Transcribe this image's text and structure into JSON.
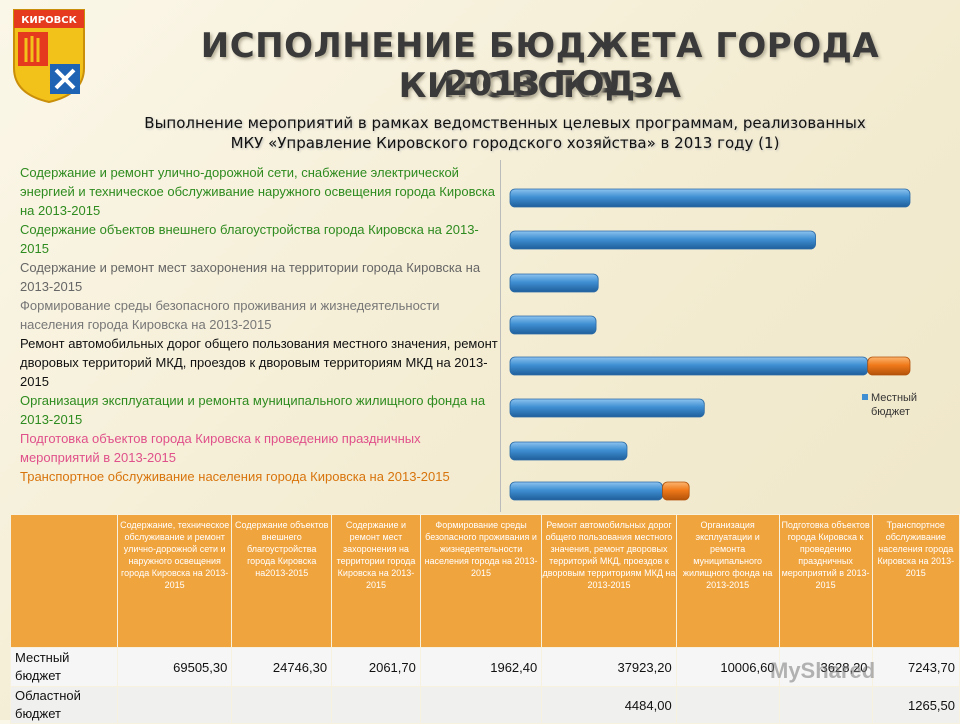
{
  "crest": {
    "text": "КИРОВСК"
  },
  "title_line1": "ИСПОЛНЕНИЕ БЮДЖЕТА  ГОРОДА КИРОВСКА ЗА",
  "title_line2": "2013 ГОД",
  "subtitle_line1": "Выполнение мероприятий в рамках ведомственных целевых программам, реализованных",
  "subtitle_line2": "МКУ «Управление Кировского городского хозяйства» в 2013 году (1)",
  "program_labels": [
    {
      "text": "Содержание и ремонт улично-дорожной сети, снабжение электрической энергией и техническое обслуживание наружного освещения города Кировска на 2013-2015",
      "color": "#2e8b1f"
    },
    {
      "text": "Содержание объектов внешнего благоустройства города Кировска на 2013-2015",
      "color": "#2e8b1f"
    },
    {
      "text": "Содержание и ремонт мест захоронения на территории города Кировска на 2013-2015",
      "color": "#666666"
    },
    {
      "text": "Формирование среды безопасного проживания и жизнедеятельности населения города Кировска на 2013-2015",
      "color": "#777777"
    },
    {
      "text": "Ремонт автомобильных дорог общего пользования местного значения, ремонт дворовых территорий МКД, проездов к дворовым территориям МКД на 2013-2015",
      "color": "#111111"
    },
    {
      "text": "Организация эксплуатации и ремонта муниципального жилищного фонда на 2013-2015",
      "color": "#2e8b1f"
    },
    {
      "text": "Подготовка объектов города Кировска к проведению праздничных мероприятий в 2013-2015",
      "color": "#e0508a"
    },
    {
      "text": "Транспортное обслуживание населения города Кировска на 2013-2015",
      "color": "#d8740c"
    }
  ],
  "table": {
    "headers": [
      "Содержание, техническое обслуживание и ремонт улично-дорожной сети и наружного освещения города Кировска на 2013-2015",
      "Содержание объектов внешнего благоустройства города Кировска на2013-2015",
      "Содержание и ремонт мест захоронения на территории города Кировска на 2013-2015",
      "Формирование среды безопасного проживания и жизнедеятельности населения города на 2013-2015",
      "Ремонт автомобильных дорог общего пользования местного значения, ремонт дворовых территорий МКД, проездов к дворовым территориям МКД на 2013-2015",
      "Организация эксплуатации и ремонта муниципального жилищного фонда на 2013-2015",
      "Подготовка объектов города Кировска к проведению праздничных мероприятий в 2013-2015",
      "Транспортное обслуживание населения города Кировска на 2013-2015"
    ],
    "rows": [
      {
        "label": "Местный бюджет",
        "cells": [
          "69505,30",
          "24746,30",
          "2061,70",
          "1962,40",
          "37923,20",
          "10006,60",
          "3628,20",
          "7243,70"
        ]
      },
      {
        "label": "Областной бюджет",
        "cells": [
          "",
          "",
          "",
          "",
          "4484,00",
          "",
          "",
          "1265,50"
        ]
      }
    ]
  },
  "chart_data": {
    "type": "bar",
    "orientation": "horizontal",
    "stacked": true,
    "categories": [
      "Содержание и ремонт улично-дорожной сети, снабжение электрической энергией и техническое обслуживание наружного освещения города Кировска на 2013-2015",
      "Содержание объектов внешнего благоустройства города Кировска на 2013-2015",
      "Содержание и ремонт мест захоронения на территории города Кировска на 2013-2015",
      "Формирование среды безопасного проживания и жизнедеятельности населения города Кировска на 2013-2015",
      "Ремонт автомобильных дорог общего пользования местного значения, ремонт дворовых территорий МКД, проездов к дворовым территориям МКД на 2013-2015",
      "Организация эксплуатации и ремонта муниципального жилищного фонда на 2013-2015",
      "Подготовка объектов города Кировска к проведению праздничных мероприятий в 2013-2015",
      "Транспортное обслуживание населения города Кировска на 2013-2015"
    ],
    "series": [
      {
        "name": "Местный бюджет",
        "color": "#3f8fd2",
        "values": [
          69505.3,
          24746.3,
          2061.7,
          1962.4,
          37923.2,
          10006.6,
          3628.2,
          7243.7
        ]
      },
      {
        "color": "#f07a1a",
        "values": [
          0,
          0,
          0,
          0,
          4484.0,
          0,
          0,
          1265.5
        ]
      }
    ],
    "axis_break": true,
    "legend_position": "right",
    "grid": false
  },
  "watermark": "MyShared"
}
